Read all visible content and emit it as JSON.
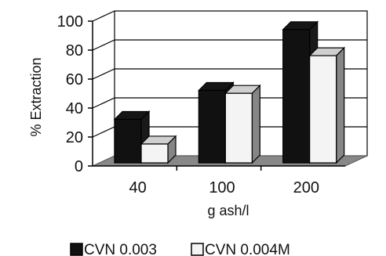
{
  "chart_data": {
    "type": "bar",
    "categories": [
      "40",
      "100",
      "200"
    ],
    "series": [
      {
        "name": "CVN 0.003",
        "values": [
          30,
          50,
          92
        ],
        "color": "#111111"
      },
      {
        "name": "CVN 0.004M",
        "values": [
          13,
          48,
          74
        ],
        "color": "#f4f4f4"
      }
    ],
    "xlabel": "g ash/l",
    "ylabel": "% Extraction",
    "ylim": [
      0,
      100
    ],
    "yticks": [
      "0",
      "20",
      "40",
      "60",
      "80",
      "100"
    ],
    "grid": true,
    "legend_position": "bottom",
    "colors": {
      "floor": "#888888",
      "wall": "#ffffff",
      "axis": "#000000"
    }
  }
}
